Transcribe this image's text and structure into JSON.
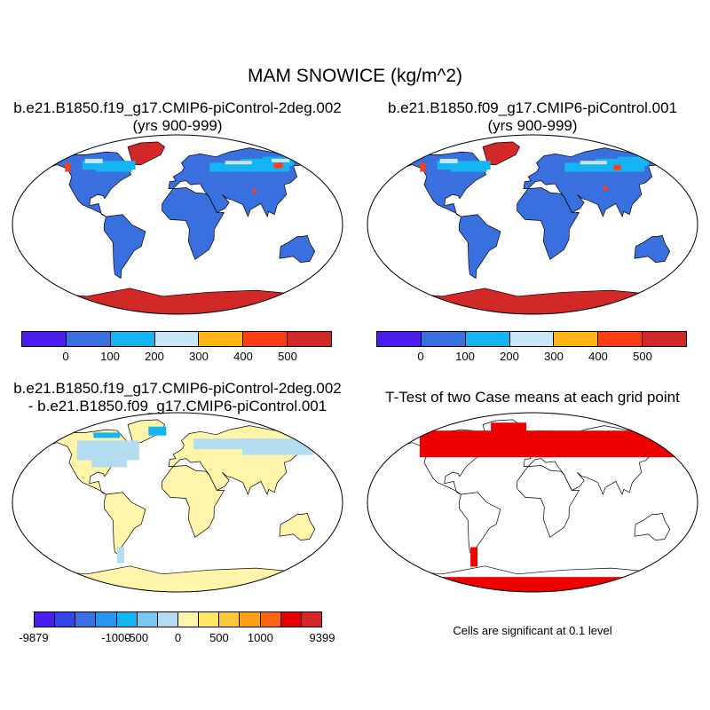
{
  "title": "MAM SNOWICE (kg/m^2)",
  "panels": [
    {
      "id": "case1",
      "title_lines": [
        "b.e21.B1850.f19_g17.CMIP6-piControl-2deg.002",
        "(yrs 900-999)"
      ]
    },
    {
      "id": "case2",
      "title_lines": [
        "b.e21.B1850.f09_g17.CMIP6-piControl.001",
        "(yrs 900-999)"
      ]
    },
    {
      "id": "diff",
      "title_lines": [
        "b.e21.B1850.f19_g17.CMIP6-piControl-2deg.002",
        "- b.e21.B1850.f09_g17.CMIP6-piControl.001"
      ]
    },
    {
      "id": "ttest",
      "title_lines": [
        "T-Test of two Case means at each grid point"
      ]
    }
  ],
  "colorbar_case": {
    "colors": [
      "#4b1ef0",
      "#3a6fe0",
      "#14b4f0",
      "#c8e6fa",
      "#ffb414",
      "#ff3c14",
      "#d22828"
    ],
    "labels": [
      "0",
      "100",
      "200",
      "300",
      "400",
      "500"
    ]
  },
  "colorbar_diff": {
    "colors": [
      "#4b1ef0",
      "#3246e6",
      "#3c6ee6",
      "#2896f0",
      "#14b4f0",
      "#78c8f0",
      "#b4dcf0",
      "#fff5aa",
      "#ffe664",
      "#ffc83c",
      "#ffa014",
      "#ff6414",
      "#e60000",
      "#d22828"
    ],
    "labels": [
      "-9879",
      "-1000",
      "-500",
      "0",
      "500",
      "1000",
      "9399"
    ]
  },
  "ttest_note": "Cells are significant at 0.1 level",
  "significance_color": "#ee0000"
}
